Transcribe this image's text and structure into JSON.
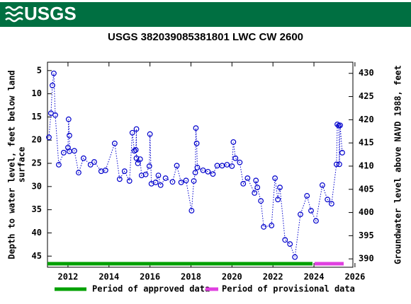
{
  "header_logo": "USGS",
  "chart_data": {
    "type": "scatter",
    "title": "USGS 382039085381801 LWC CW 2600",
    "ylabel": [
      "Depth to water level, feet below land",
      "surface"
    ],
    "y2label": "Groundwater level above NAVD 1988, feet",
    "xlim": [
      2011.0,
      2025.9
    ],
    "xticks": [
      2012,
      2014,
      2016,
      2018,
      2020,
      2022,
      2024,
      2026
    ],
    "ylim": [
      47.4,
      3.2
    ],
    "yticks": [
      5,
      10,
      15,
      20,
      25,
      30,
      35,
      40,
      45
    ],
    "y2lim": [
      388.2,
      432.4
    ],
    "y2ticks": [
      390,
      395,
      400,
      405,
      410,
      415,
      420,
      425,
      430
    ],
    "series": [
      {
        "name": "Depth to water level",
        "color": "#0000cc",
        "x": [
          2011.07,
          2011.17,
          2011.24,
          2011.31,
          2011.38,
          2011.55,
          2011.79,
          2012.0,
          2012.03,
          2012.07,
          2012.07,
          2012.31,
          2012.52,
          2012.76,
          2013.1,
          2013.28,
          2013.62,
          2013.83,
          2014.28,
          2014.52,
          2014.76,
          2015.0,
          2015.14,
          2015.24,
          2015.31,
          2015.34,
          2015.34,
          2015.41,
          2015.52,
          2015.59,
          2015.79,
          2015.97,
          2016.0,
          2016.07,
          2016.28,
          2016.41,
          2016.52,
          2016.76,
          2017.1,
          2017.31,
          2017.52,
          2017.76,
          2018.03,
          2018.14,
          2018.21,
          2018.24,
          2018.28,
          2018.31,
          2018.59,
          2018.83,
          2019.07,
          2019.28,
          2019.52,
          2019.76,
          2020.0,
          2020.07,
          2020.17,
          2020.38,
          2020.55,
          2020.76,
          2021.1,
          2021.17,
          2021.24,
          2021.41,
          2021.55,
          2021.93,
          2022.1,
          2022.24,
          2022.34,
          2022.59,
          2022.83,
          2023.07,
          2023.34,
          2023.66,
          2023.86,
          2024.1,
          2024.41,
          2024.66,
          2024.86,
          2025.1,
          2025.14,
          2025.21,
          2025.24,
          2025.28,
          2025.38
        ],
        "values": [
          19.4,
          14.2,
          8.2,
          5.6,
          14.6,
          25.3,
          22.7,
          21.6,
          15.5,
          19.0,
          22.4,
          22.3,
          27.0,
          23.9,
          25.3,
          24.7,
          26.7,
          26.5,
          20.7,
          28.4,
          26.7,
          28.8,
          18.4,
          22.3,
          22.1,
          17.6,
          23.9,
          25.0,
          24.1,
          27.6,
          27.4,
          25.6,
          18.7,
          29.4,
          29.1,
          27.6,
          29.7,
          28.2,
          29.0,
          25.5,
          29.1,
          28.7,
          35.2,
          28.8,
          27.0,
          17.4,
          20.7,
          25.9,
          26.5,
          26.8,
          27.3,
          25.5,
          25.5,
          25.3,
          25.6,
          20.4,
          23.9,
          24.8,
          29.4,
          28.2,
          31.4,
          28.7,
          30.2,
          33.1,
          38.7,
          38.4,
          28.2,
          32.8,
          30.2,
          41.5,
          42.4,
          45.2,
          36.0,
          32.0,
          35.2,
          37.4,
          29.7,
          32.8,
          33.7,
          25.2,
          16.6,
          16.9,
          25.2,
          16.8,
          22.7
        ]
      }
    ],
    "periods": [
      {
        "name": "Period of approved data",
        "color": "#00a000",
        "x": [
          2011.0,
          2023.93
        ]
      },
      {
        "name": "Period of provisional data",
        "color": "#e040e0",
        "x": [
          2024.03,
          2025.45
        ]
      }
    ]
  }
}
